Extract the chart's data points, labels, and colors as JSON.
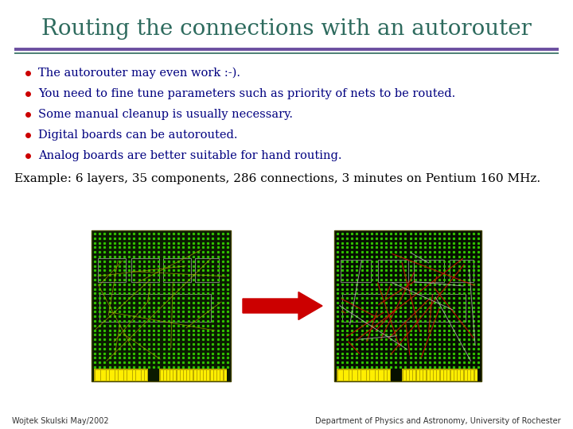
{
  "title": "Routing the connections with an autorouter",
  "title_color": "#2E6B5E",
  "title_fontsize": 20,
  "bg_color": "#FFFFFF",
  "line1_color": "#6B4FA0",
  "line2_color": "#2E6B5E",
  "bullet_color": "#CC0000",
  "bullet_text_color": "#000080",
  "bullet_fontsize": 10.5,
  "bullets": [
    "The autorouter may even work :-).",
    "You need to fine tune parameters such as priority of nets to be routed.",
    "Some manual cleanup is usually necessary.",
    "Digital boards can be autorouted.",
    "Analog boards are better suitable for hand routing."
  ],
  "example_text": "Example: 6 layers, 35 components, 286 connections, 3 minutes on Pentium 160 MHz.",
  "example_fontsize": 11,
  "footer_left": "Wojtek Skulski May/2002",
  "footer_right": "Department of Physics and Astronomy, University of Rochester",
  "footer_fontsize": 7,
  "arrow_color": "#CC0000",
  "pcb_dark": "#0a1a00",
  "pcb_green": "#33CC00",
  "pcb_yellow": "#CCAA00"
}
